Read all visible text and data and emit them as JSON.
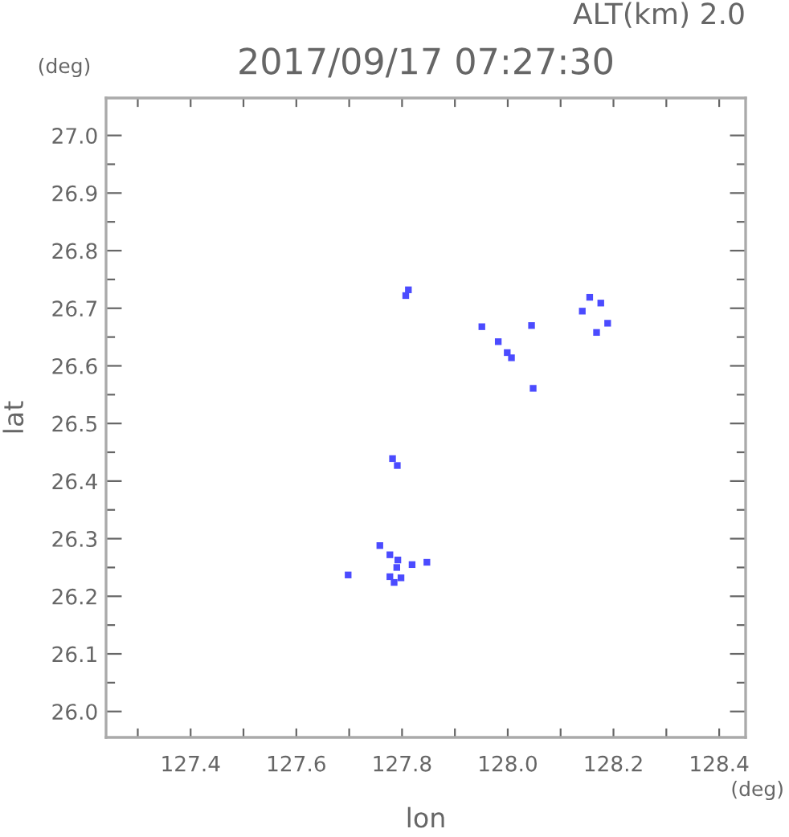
{
  "chart_data": {
    "type": "scatter",
    "title": "2017/09/17 07:27:30",
    "subtitle": "ALT(km) 2.0",
    "xlabel": "lon",
    "ylabel": "lat",
    "annotations": [
      "(deg)",
      "(deg)"
    ],
    "x": [
      127.812,
      127.807,
      127.951,
      127.982,
      127.999,
      128.007,
      128.045,
      128.048,
      128.155,
      128.141,
      128.176,
      128.189,
      128.168,
      127.782,
      127.791,
      127.758,
      127.777,
      127.792,
      127.79,
      127.819,
      127.847,
      127.698,
      127.777,
      127.798,
      127.785
    ],
    "series": [
      {
        "color": "#4b4bff",
        "values": [
          26.732,
          26.722,
          26.668,
          26.642,
          26.623,
          26.614,
          26.67,
          26.561,
          26.719,
          26.695,
          26.709,
          26.674,
          26.658,
          26.439,
          26.427,
          26.288,
          26.272,
          26.263,
          26.25,
          26.255,
          26.259,
          26.237,
          26.234,
          26.232,
          26.224
        ]
      }
    ],
    "marker": "square",
    "grid": false,
    "legend": false,
    "xlim": [
      127.24,
      128.45
    ],
    "ylim": [
      25.955,
      27.065
    ],
    "xticks": [
      {
        "value": 127.3,
        "label": null
      },
      127.4,
      {
        "value": 127.5,
        "label": null
      },
      127.6,
      {
        "value": 127.7,
        "label": null
      },
      127.8,
      {
        "value": 127.9,
        "label": null
      },
      {
        "value": 128.0,
        "label": "128.0"
      },
      {
        "value": 128.1,
        "label": null
      },
      128.2,
      {
        "value": 128.3,
        "label": null
      },
      128.4
    ],
    "yticks": [
      {
        "value": 26.0,
        "label": "26.0"
      },
      {
        "value": 26.05,
        "label": null
      },
      26.1,
      {
        "value": 26.15,
        "label": null
      },
      26.2,
      {
        "value": 26.25,
        "label": null
      },
      26.3,
      {
        "value": 26.35,
        "label": null
      },
      26.4,
      {
        "value": 26.45,
        "label": null
      },
      26.5,
      {
        "value": 26.55,
        "label": null
      },
      26.6,
      {
        "value": 26.65,
        "label": null
      },
      26.7,
      {
        "value": 26.75,
        "label": null
      },
      26.8,
      {
        "value": 26.85,
        "label": null
      },
      26.9,
      {
        "value": 26.95,
        "label": null
      },
      {
        "value": 27.0,
        "label": "27.0"
      }
    ]
  }
}
